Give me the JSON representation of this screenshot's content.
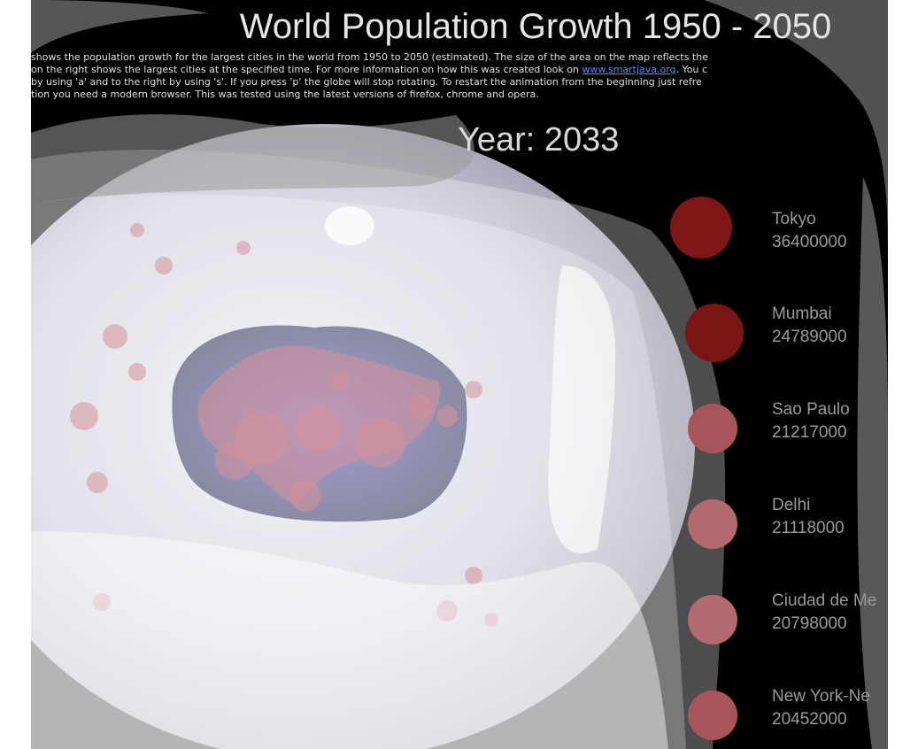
{
  "header": {
    "title": "World Population Growth 1950 - 2050",
    "description_lines": [
      "shows the population growth for the largest cities in the world from 1950 to 2050 (estimated). The size of the area on the map reflects the",
      "on the right shows the largest cities at the specified time. For more information on how this was created look on ",
      "by using 'a' and to the right by using 's'. If you press 'p' the globe will stop rotating. To restart the animation from the beginning just refre",
      "tion you need a modern browser. This was tested using the latest versions of firefox, chrome and opera."
    ],
    "link_text": "www.smartjava.org",
    "line2_tail": ". You c"
  },
  "year_label": "Year: 2033",
  "cities": [
    {
      "name": "Tokyo",
      "population": "36400000"
    },
    {
      "name": "Mumbai",
      "population": "24789000"
    },
    {
      "name": "Sao Paulo",
      "population": "21217000"
    },
    {
      "name": "Delhi",
      "population": "21118000"
    },
    {
      "name": "Ciudad de Me",
      "population": "20798000"
    },
    {
      "name": "New York-Ne",
      "population": "20452000"
    }
  ],
  "colors": {
    "background": "#000000",
    "city_circle": "#8a1a1a",
    "globe": "#c8c8d8",
    "link": "#5a8bff"
  }
}
